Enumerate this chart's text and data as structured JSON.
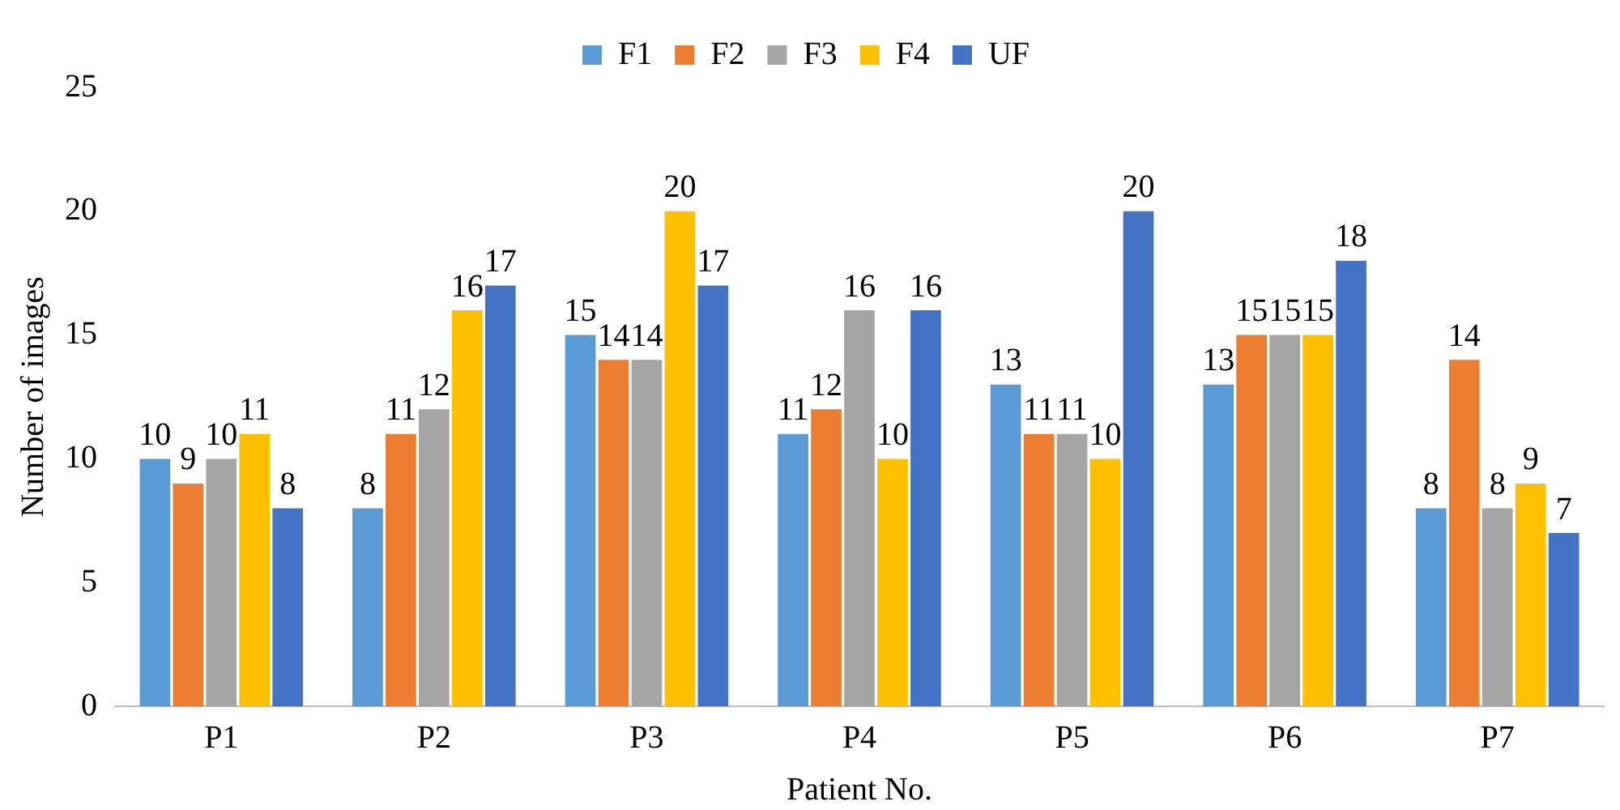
{
  "chart_data": {
    "type": "bar",
    "xlabel": "Patient No.",
    "ylabel": "Number of images",
    "categories": [
      "P1",
      "P2",
      "P3",
      "P4",
      "P5",
      "P6",
      "P7"
    ],
    "series": [
      {
        "name": "F1",
        "color": "#5b9bd5",
        "values": [
          10,
          8,
          15,
          11,
          13,
          13,
          8
        ]
      },
      {
        "name": "F2",
        "color": "#ed7d31",
        "values": [
          9,
          11,
          14,
          12,
          11,
          15,
          14
        ]
      },
      {
        "name": "F3",
        "color": "#a5a5a5",
        "values": [
          10,
          12,
          14,
          16,
          11,
          15,
          8
        ]
      },
      {
        "name": "F4",
        "color": "#ffc000",
        "values": [
          11,
          16,
          20,
          10,
          10,
          15,
          9
        ]
      },
      {
        "name": "UF",
        "color": "#4472c4",
        "values": [
          8,
          17,
          17,
          16,
          20,
          18,
          7
        ]
      }
    ],
    "ylim": [
      0,
      25
    ],
    "yticks": [
      0,
      5,
      10,
      15,
      20,
      25
    ],
    "grid": false,
    "legend": "top",
    "data_labels": true
  }
}
